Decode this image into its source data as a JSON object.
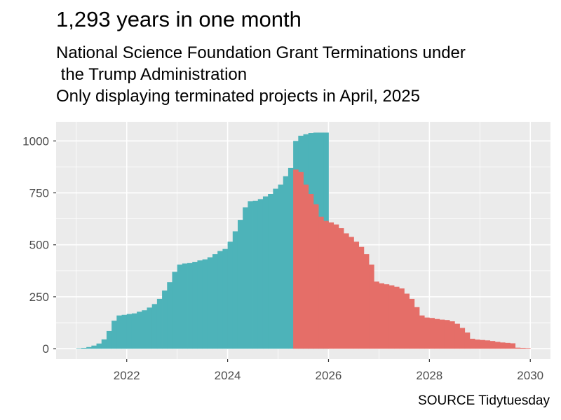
{
  "title": "1,293 years in one month",
  "subtitle_lines": [
    "National Science Foundation Grant Terminations under",
    " the Trump Administration",
    "Only displaying terminated projects in April, 2025"
  ],
  "caption": "SOURCE Tidytuesday",
  "chart_data": {
    "type": "area",
    "title": "1,293 years in one month",
    "xlabel": "",
    "ylabel": "",
    "xlim": [
      2020.6,
      2030.4
    ],
    "ylim": [
      -50,
      1092
    ],
    "x_ticks": [
      2022,
      2024,
      2026,
      2028,
      2030
    ],
    "y_ticks": [
      0,
      250,
      500,
      750,
      1000
    ],
    "grid": true,
    "legend": "none",
    "colors": {
      "panel": "#EBEBEB",
      "before_split": "#4DB3B9",
      "after_split": "#E56E68"
    },
    "split_x": 2025.3,
    "bin_width": 0.1,
    "series": [
      {
        "values": [
          [
            2021.0,
            2
          ],
          [
            2021.1,
            4
          ],
          [
            2021.2,
            8
          ],
          [
            2021.3,
            15
          ],
          [
            2021.4,
            25
          ],
          [
            2021.5,
            45
          ],
          [
            2021.6,
            85
          ],
          [
            2021.7,
            135
          ],
          [
            2021.8,
            160
          ],
          [
            2021.9,
            163
          ],
          [
            2022.0,
            167
          ],
          [
            2022.1,
            170
          ],
          [
            2022.2,
            178
          ],
          [
            2022.3,
            185
          ],
          [
            2022.4,
            198
          ],
          [
            2022.5,
            215
          ],
          [
            2022.6,
            240
          ],
          [
            2022.7,
            280
          ],
          [
            2022.8,
            320
          ],
          [
            2022.9,
            370
          ],
          [
            2023.0,
            405
          ],
          [
            2023.1,
            410
          ],
          [
            2023.2,
            412
          ],
          [
            2023.3,
            418
          ],
          [
            2023.4,
            425
          ],
          [
            2023.5,
            430
          ],
          [
            2023.6,
            440
          ],
          [
            2023.7,
            455
          ],
          [
            2023.8,
            470
          ],
          [
            2023.9,
            480
          ],
          [
            2024.0,
            515
          ],
          [
            2024.1,
            565
          ],
          [
            2024.2,
            620
          ],
          [
            2024.3,
            680
          ],
          [
            2024.4,
            710
          ],
          [
            2024.5,
            712
          ],
          [
            2024.6,
            720
          ],
          [
            2024.7,
            733
          ],
          [
            2024.8,
            745
          ],
          [
            2024.9,
            770
          ],
          [
            2025.0,
            790
          ],
          [
            2025.1,
            830
          ],
          [
            2025.2,
            870
          ],
          [
            2025.3,
            1000
          ],
          [
            2025.4,
            1025
          ],
          [
            2025.5,
            1032
          ],
          [
            2025.6,
            1038
          ],
          [
            2025.7,
            1040
          ],
          [
            2025.8,
            1040
          ],
          [
            2025.9,
            1040
          ]
        ]
      },
      {
        "values": [
          [
            2025.3,
            862
          ],
          [
            2025.4,
            850
          ],
          [
            2025.5,
            790
          ],
          [
            2025.6,
            745
          ],
          [
            2025.7,
            695
          ],
          [
            2025.8,
            635
          ],
          [
            2025.9,
            615
          ],
          [
            2026.0,
            608
          ],
          [
            2026.1,
            598
          ],
          [
            2026.2,
            580
          ],
          [
            2026.3,
            555
          ],
          [
            2026.4,
            538
          ],
          [
            2026.5,
            515
          ],
          [
            2026.6,
            490
          ],
          [
            2026.7,
            455
          ],
          [
            2026.8,
            405
          ],
          [
            2026.9,
            323
          ],
          [
            2027.0,
            315
          ],
          [
            2027.1,
            310
          ],
          [
            2027.2,
            305
          ],
          [
            2027.3,
            298
          ],
          [
            2027.4,
            290
          ],
          [
            2027.5,
            265
          ],
          [
            2027.6,
            240
          ],
          [
            2027.7,
            200
          ],
          [
            2027.8,
            160
          ],
          [
            2027.9,
            150
          ],
          [
            2028.0,
            148
          ],
          [
            2028.1,
            143
          ],
          [
            2028.2,
            140
          ],
          [
            2028.3,
            138
          ],
          [
            2028.4,
            132
          ],
          [
            2028.5,
            120
          ],
          [
            2028.6,
            100
          ],
          [
            2028.7,
            78
          ],
          [
            2028.8,
            48
          ],
          [
            2028.9,
            44
          ],
          [
            2029.0,
            42
          ],
          [
            2029.1,
            40
          ],
          [
            2029.2,
            37
          ],
          [
            2029.3,
            33
          ],
          [
            2029.4,
            30
          ],
          [
            2029.5,
            28
          ],
          [
            2029.6,
            26
          ],
          [
            2029.7,
            5
          ],
          [
            2029.8,
            4
          ],
          [
            2029.9,
            3
          ]
        ]
      }
    ]
  }
}
